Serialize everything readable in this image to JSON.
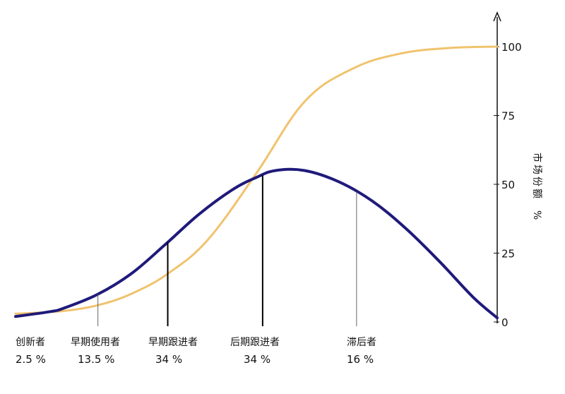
{
  "chart_data": {
    "type": "line",
    "x_range": [
      0,
      100
    ],
    "ylim": [
      0,
      100
    ],
    "y_ticks": [
      0,
      25,
      50,
      75,
      100
    ],
    "y_axis_position": "right",
    "ylabel_chars": [
      "市",
      "场",
      "份",
      "额"
    ],
    "yunit": "%",
    "grid": false,
    "legend": "none",
    "series": [
      {
        "key": "adoption",
        "kind": "bell",
        "color": "#1f1a7a",
        "x": [
          0,
          7,
          10,
          17,
          24,
          31,
          38,
          45,
          50,
          54,
          60,
          67,
          74,
          81,
          88,
          95,
          100
        ],
        "y": [
          2.0,
          3.7,
          5.0,
          10.0,
          17.5,
          28.0,
          39.0,
          48.0,
          52.5,
          55.0,
          55.0,
          51.0,
          44.0,
          34.0,
          22.0,
          9.0,
          1.5
        ]
      },
      {
        "key": "cumulative",
        "kind": "s-curve",
        "color": "#f0c36e",
        "x": [
          0,
          10,
          18,
          25,
          32,
          40,
          50,
          60,
          70,
          80,
          90,
          100
        ],
        "y": [
          3.0,
          4.0,
          6.5,
          11.0,
          18.0,
          30.0,
          54.0,
          80.0,
          92.0,
          97.5,
          99.5,
          100.0
        ]
      }
    ],
    "dividers": [
      {
        "x": 17.1,
        "style": "thin"
      },
      {
        "x": 31.6,
        "style": "bold"
      },
      {
        "x": 51.3,
        "style": "bold"
      },
      {
        "x": 70.8,
        "style": "thin"
      }
    ],
    "segments": [
      {
        "name": "创新者",
        "pct": "2.5 %"
      },
      {
        "name": "早期使用者",
        "pct": "13.5 %"
      },
      {
        "name": "早期跟进者",
        "pct": "34 %"
      },
      {
        "name": "后期跟进者",
        "pct": "34 %"
      },
      {
        "name": "滞后者",
        "pct": "16 %"
      }
    ]
  }
}
